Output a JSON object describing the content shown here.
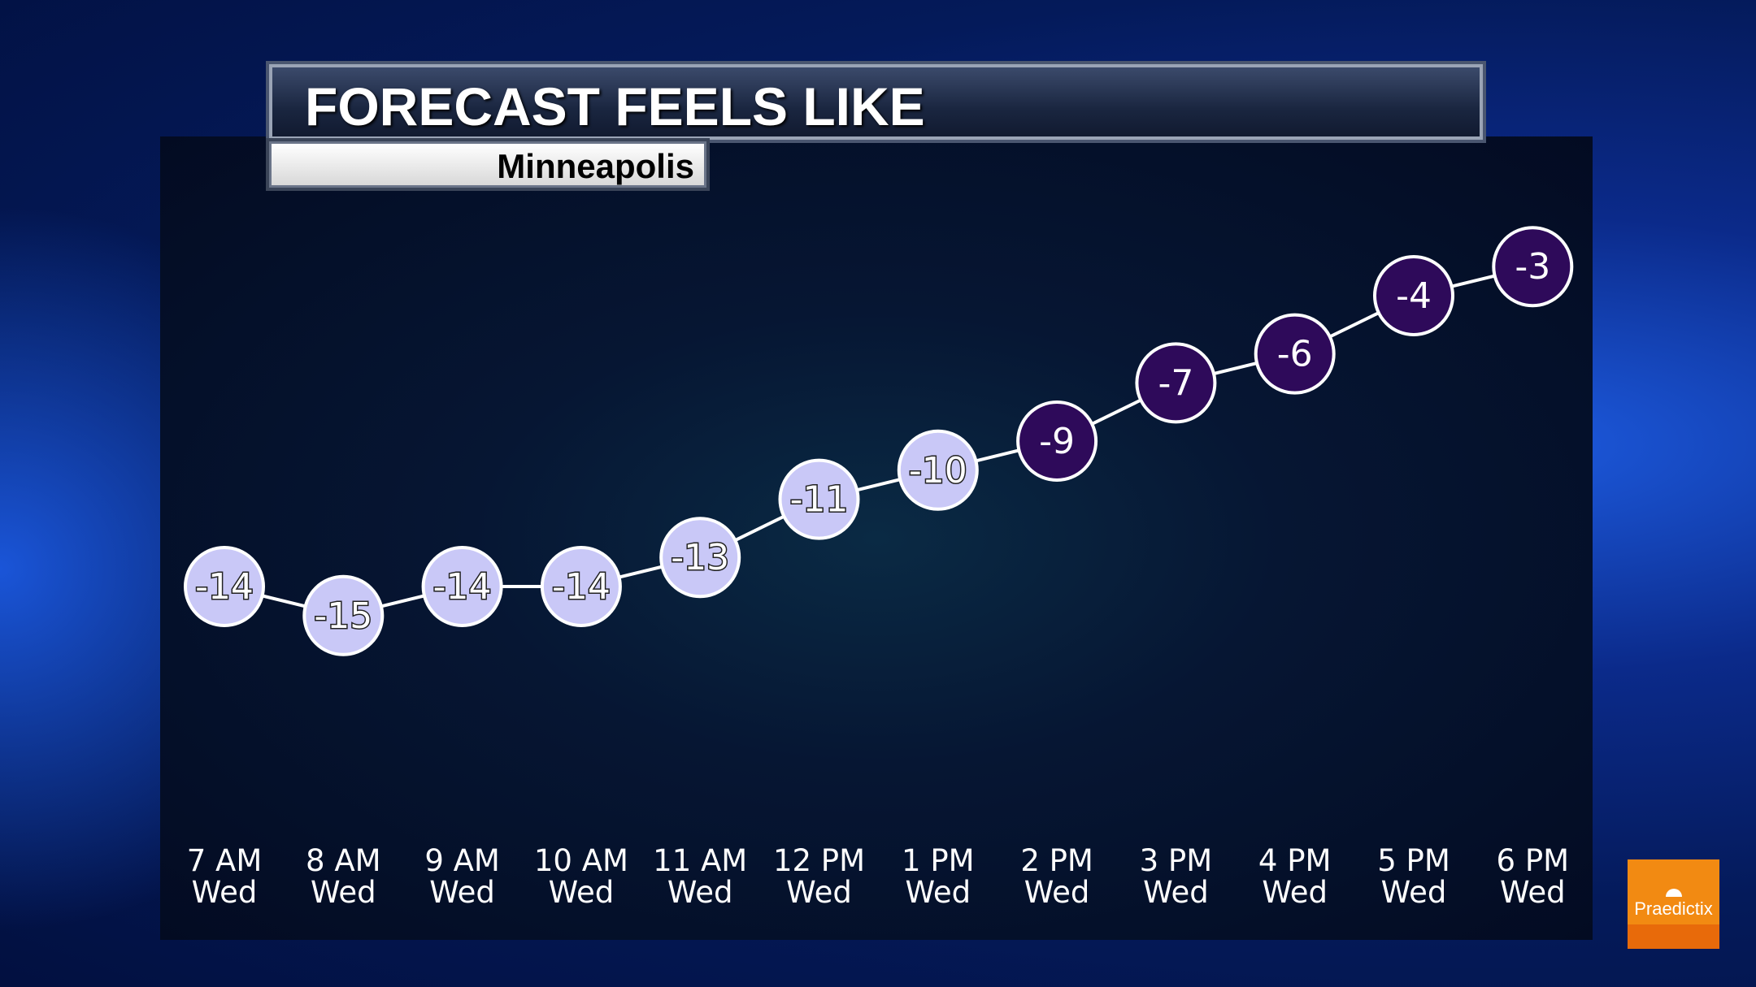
{
  "chart_data": {
    "type": "line",
    "title": "FORECAST FEELS LIKE",
    "subtitle": "Minneapolis",
    "categories": [
      [
        "7 AM",
        "Wed"
      ],
      [
        "8 AM",
        "Wed"
      ],
      [
        "9 AM",
        "Wed"
      ],
      [
        "10 AM",
        "Wed"
      ],
      [
        "11 AM",
        "Wed"
      ],
      [
        "12 PM",
        "Wed"
      ],
      [
        "1 PM",
        "Wed"
      ],
      [
        "2 PM",
        "Wed"
      ],
      [
        "3 PM",
        "Wed"
      ],
      [
        "4 PM",
        "Wed"
      ],
      [
        "5 PM",
        "Wed"
      ],
      [
        "6 PM",
        "Wed"
      ]
    ],
    "values": [
      -14,
      -15,
      -14,
      -14,
      -13,
      -11,
      -10,
      -9,
      -7,
      -6,
      -4,
      -3
    ],
    "colors": {
      "cold": "#c9c8f7",
      "warmer": "#2e0a5a",
      "line": "#ffffff"
    }
  },
  "logo": {
    "text": "Praedictix",
    "color": "#f28a12"
  }
}
